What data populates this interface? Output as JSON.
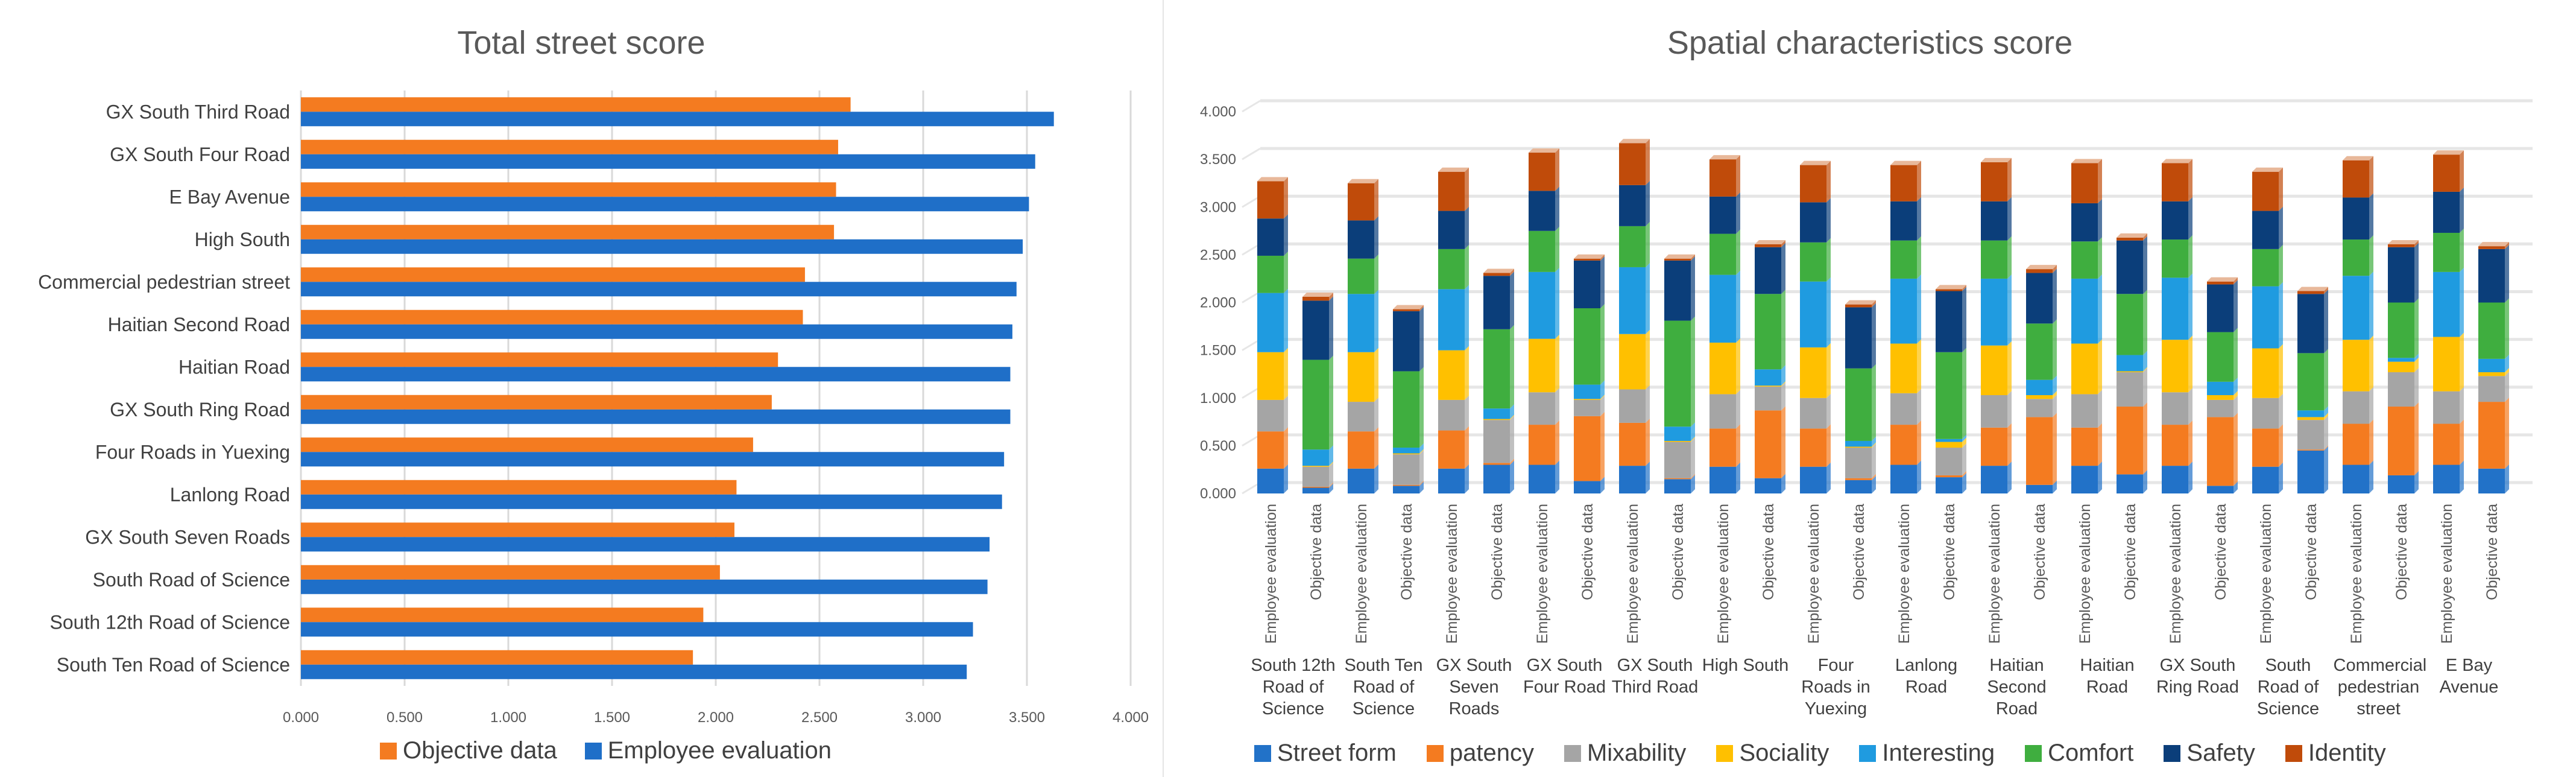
{
  "chart_data": [
    {
      "type": "bar",
      "orientation": "horizontal",
      "title": "Total street score",
      "xlabel": "",
      "ylabel": "",
      "xlim": [
        0,
        4
      ],
      "x_ticks": [
        "0.000",
        "0.500",
        "1.000",
        "1.500",
        "2.000",
        "2.500",
        "3.000",
        "3.500",
        "4.000"
      ],
      "grid": true,
      "legend_position": "bottom",
      "categories": [
        "GX South Third Road",
        "GX South Four Road",
        "E Bay Avenue",
        "High South",
        "Commercial pedestrian street",
        "Haitian Second Road",
        "Haitian Road",
        "GX South Ring Road",
        "Four Roads in Yuexing",
        "Lanlong Road",
        "GX South Seven Roads",
        "South Road of Science",
        "South 12th Road of Science",
        "South Ten Road of Science"
      ],
      "series": [
        {
          "name": "Objective data",
          "color": "#f47b20",
          "values": [
            2.65,
            2.59,
            2.58,
            2.57,
            2.43,
            2.42,
            2.3,
            2.27,
            2.18,
            2.1,
            2.09,
            2.02,
            1.94,
            1.89
          ]
        },
        {
          "name": "Employee evaluation",
          "color": "#1f6fc8",
          "values": [
            3.63,
            3.54,
            3.51,
            3.48,
            3.45,
            3.43,
            3.42,
            3.42,
            3.39,
            3.38,
            3.32,
            3.31,
            3.24,
            3.21
          ]
        }
      ]
    },
    {
      "type": "bar",
      "stacked": true,
      "title": "Spatial characteristics score",
      "xlabel": "",
      "ylabel": "",
      "ylim": [
        0,
        4
      ],
      "y_ticks": [
        "0.000",
        "0.500",
        "1.000",
        "1.500",
        "2.000",
        "2.500",
        "3.000",
        "3.500",
        "4.000"
      ],
      "grid": true,
      "legend_position": "bottom",
      "groups": [
        "South 12th Road of Science",
        "South Ten Road of Science",
        "GX South Seven Roads",
        "GX South Four Road",
        "GX South Third Road",
        "High South",
        "Four Roads in Yuexing",
        "Lanlong Road",
        "Haitian Second Road",
        "Haitian Road",
        "GX South Ring Road",
        "South Road of Science",
        "Commercial pedestrian street",
        "E Bay Avenue"
      ],
      "subcategories": [
        "Employee evaluation",
        "Objective data"
      ],
      "series": [
        {
          "name": "Street form",
          "color": "#2272c8",
          "values": [
            0.26,
            0.06,
            0.26,
            0.08,
            0.26,
            0.3,
            0.3,
            0.13,
            0.29,
            0.15,
            0.28,
            0.16,
            0.28,
            0.14,
            0.3,
            0.17,
            0.29,
            0.09,
            0.29,
            0.2,
            0.29,
            0.08,
            0.28,
            0.45,
            0.3,
            0.19,
            0.3,
            0.26
          ]
        },
        {
          "name": "patency",
          "color": "#f47b20",
          "values": [
            0.39,
            0.01,
            0.39,
            0.01,
            0.4,
            0.02,
            0.42,
            0.68,
            0.45,
            0.01,
            0.4,
            0.71,
            0.4,
            0.02,
            0.42,
            0.02,
            0.4,
            0.71,
            0.4,
            0.71,
            0.43,
            0.72,
            0.4,
            0.01,
            0.43,
            0.72,
            0.43,
            0.7
          ]
        },
        {
          "name": "Mixability",
          "color": "#a5a5a5",
          "values": [
            0.33,
            0.21,
            0.31,
            0.32,
            0.32,
            0.45,
            0.34,
            0.17,
            0.35,
            0.38,
            0.36,
            0.25,
            0.32,
            0.32,
            0.33,
            0.29,
            0.34,
            0.19,
            0.35,
            0.36,
            0.34,
            0.18,
            0.32,
            0.31,
            0.34,
            0.36,
            0.34,
            0.27
          ]
        },
        {
          "name": "Sociality",
          "color": "#ffc000",
          "values": [
            0.5,
            0.01,
            0.52,
            0.01,
            0.52,
            0.01,
            0.56,
            0.01,
            0.58,
            0.01,
            0.54,
            0.01,
            0.53,
            0.01,
            0.52,
            0.06,
            0.52,
            0.04,
            0.53,
            0.01,
            0.55,
            0.05,
            0.52,
            0.03,
            0.54,
            0.11,
            0.57,
            0.04
          ]
        },
        {
          "name": "Interesting",
          "color": "#1f9be0",
          "values": [
            0.62,
            0.17,
            0.61,
            0.06,
            0.64,
            0.11,
            0.7,
            0.15,
            0.7,
            0.15,
            0.71,
            0.17,
            0.69,
            0.06,
            0.68,
            0.03,
            0.7,
            0.16,
            0.68,
            0.17,
            0.65,
            0.14,
            0.65,
            0.07,
            0.67,
            0.04,
            0.68,
            0.14
          ]
        },
        {
          "name": "Comfort",
          "color": "#3fae3f",
          "values": [
            0.39,
            0.94,
            0.37,
            0.8,
            0.42,
            0.83,
            0.43,
            0.8,
            0.43,
            1.11,
            0.43,
            0.79,
            0.41,
            0.76,
            0.4,
            0.91,
            0.4,
            0.59,
            0.39,
            0.64,
            0.4,
            0.52,
            0.39,
            0.6,
            0.38,
            0.58,
            0.41,
            0.59
          ]
        },
        {
          "name": "Safety",
          "color": "#0b3e7a",
          "values": [
            0.39,
            0.62,
            0.4,
            0.63,
            0.4,
            0.56,
            0.42,
            0.5,
            0.43,
            0.63,
            0.39,
            0.49,
            0.42,
            0.64,
            0.41,
            0.64,
            0.41,
            0.53,
            0.4,
            0.56,
            0.4,
            0.5,
            0.4,
            0.62,
            0.44,
            0.58,
            0.43,
            0.56
          ]
        },
        {
          "name": "Identity",
          "color": "#c04b0a",
          "values": [
            0.39,
            0.04,
            0.39,
            0.02,
            0.41,
            0.03,
            0.4,
            0.02,
            0.44,
            0.02,
            0.39,
            0.03,
            0.39,
            0.03,
            0.38,
            0.02,
            0.41,
            0.04,
            0.42,
            0.03,
            0.4,
            0.03,
            0.41,
            0.03,
            0.39,
            0.03,
            0.39,
            0.03
          ]
        }
      ]
    }
  ]
}
